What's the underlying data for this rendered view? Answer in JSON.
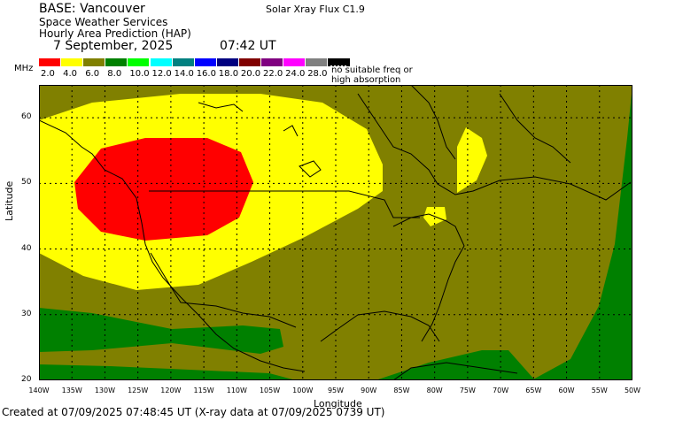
{
  "header": {
    "base": "BASE: Vancouver",
    "service": "Space Weather Services",
    "product": "Hourly Area Prediction (HAP)",
    "date": "7 September, 2025",
    "time": "07:42 UT",
    "flux": "Solar Xray Flux C1.9"
  },
  "legend": {
    "unit": "MHz",
    "items": [
      {
        "label": "2.0",
        "color": "#ff0000"
      },
      {
        "label": "4.0",
        "color": "#ffff00"
      },
      {
        "label": "6.0",
        "color": "#808000"
      },
      {
        "label": "8.0",
        "color": "#008000"
      },
      {
        "label": "10.0",
        "color": "#00ff00"
      },
      {
        "label": "12.0",
        "color": "#00ffff"
      },
      {
        "label": "14.0",
        "color": "#008080"
      },
      {
        "label": "16.0",
        "color": "#0000ff"
      },
      {
        "label": "18.0",
        "color": "#000080"
      },
      {
        "label": "20.0",
        "color": "#800000"
      },
      {
        "label": "22.0",
        "color": "#800080"
      },
      {
        "label": "24.0",
        "color": "#ff00ff"
      },
      {
        "label": "28.0",
        "color": "#808080"
      }
    ],
    "no_freq_line1": "no suitable freq or",
    "no_freq_line2": "high absorption"
  },
  "axes": {
    "ylabel": "Latitude",
    "xlabel": "Longitude",
    "yticks": [
      "60",
      "50",
      "40",
      "30",
      "20"
    ],
    "xticks": [
      "140W",
      "135W",
      "130W",
      "125W",
      "120W",
      "115W",
      "110W",
      "105W",
      "100W",
      "95W",
      "90W",
      "85W",
      "80W",
      "75W",
      "70W",
      "65W",
      "60W",
      "55W",
      "50W"
    ],
    "lon_range": [
      -140,
      -50
    ],
    "lat_range": [
      20,
      65
    ]
  },
  "footer": "Created at 07/09/2025 07:48:45 UT (X-ray data at 07/09/2025 0739 UT)"
}
